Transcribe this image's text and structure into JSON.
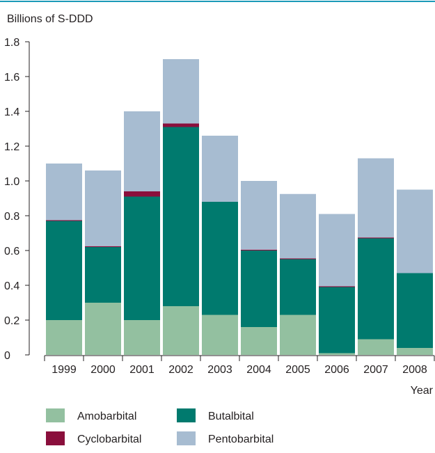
{
  "chart_data": {
    "type": "bar",
    "stacked": true,
    "ylabel": "Billions of S-DDD",
    "xlabel": "Year",
    "ylim": [
      0,
      1.8
    ],
    "yticks": [
      "0",
      "0.2",
      "0.4",
      "0.6",
      "0.8",
      "1.0",
      "1.2",
      "1.4",
      "1.6",
      "1.8"
    ],
    "ytick_values": [
      0,
      0.2,
      0.4,
      0.6,
      0.8,
      1.0,
      1.2,
      1.4,
      1.6,
      1.8
    ],
    "categories": [
      "1999",
      "2000",
      "2001",
      "2002",
      "2003",
      "2004",
      "2005",
      "2006",
      "2007",
      "2008"
    ],
    "series": [
      {
        "name": "Amobarbital",
        "color": "#93c0a0",
        "values": [
          0.2,
          0.3,
          0.2,
          0.28,
          0.23,
          0.16,
          0.23,
          0.01,
          0.09,
          0.04
        ]
      },
      {
        "name": "Butalbital",
        "color": "#007a6e",
        "values": [
          0.57,
          0.32,
          0.71,
          1.03,
          0.65,
          0.44,
          0.32,
          0.38,
          0.58,
          0.43
        ]
      },
      {
        "name": "Cyclobarbital",
        "color": "#8a0f3c",
        "values": [
          0.005,
          0.005,
          0.03,
          0.02,
          0.0,
          0.005,
          0.005,
          0.005,
          0.005,
          0.0
        ]
      },
      {
        "name": "Pentobarbital",
        "color": "#a7bcd1",
        "values": [
          0.325,
          0.435,
          0.46,
          0.37,
          0.38,
          0.395,
          0.37,
          0.415,
          0.455,
          0.48
        ]
      }
    ],
    "legend_position": "bottom",
    "grid": false
  }
}
